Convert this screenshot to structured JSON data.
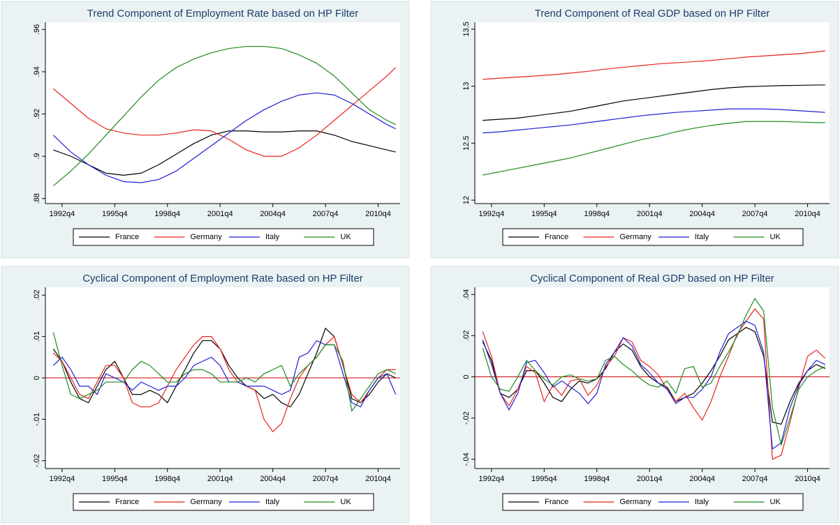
{
  "chart_data": [
    {
      "type": "line",
      "title": "Trend Component of Employment Rate based on HP Filter",
      "x": [
        1992.25,
        1993.25,
        1994.25,
        1995.25,
        1996.25,
        1997.25,
        1998.25,
        1999.25,
        2000.25,
        2001.25,
        2002.25,
        2003.25,
        2004.25,
        2005.25,
        2006.25,
        2007.25,
        2008.25,
        2009.25,
        2010.25,
        2011.25,
        2011.75
      ],
      "xlim": [
        1991.8,
        2012.0
      ],
      "xticks": [
        {
          "value": 1992.75,
          "label": "1992q4"
        },
        {
          "value": 1995.75,
          "label": "1995q4"
        },
        {
          "value": 1998.75,
          "label": "1998q4"
        },
        {
          "value": 2001.75,
          "label": "2001q4"
        },
        {
          "value": 2004.75,
          "label": "2004q4"
        },
        {
          "value": 2007.75,
          "label": "2007q4"
        },
        {
          "value": 2010.75,
          "label": "2010q4"
        }
      ],
      "ylim": [
        0.8776,
        0.9634
      ],
      "yticks": [
        {
          "value": 0.88,
          "label": ".88"
        },
        {
          "value": 0.9,
          "label": ".9"
        },
        {
          "value": 0.92,
          "label": ".92"
        },
        {
          "value": 0.94,
          "label": ".94"
        },
        {
          "value": 0.96,
          "label": ".96"
        }
      ],
      "series": [
        {
          "name": "France",
          "color": "#000000",
          "values": [
            0.903,
            0.9,
            0.896,
            0.892,
            0.891,
            0.892,
            0.896,
            0.901,
            0.906,
            0.91,
            0.912,
            0.912,
            0.9115,
            0.9115,
            0.912,
            0.912,
            0.91,
            0.907,
            0.905,
            0.903,
            0.902
          ]
        },
        {
          "name": "Germany",
          "color": "#e8231e",
          "values": [
            0.932,
            0.925,
            0.918,
            0.913,
            0.911,
            0.91,
            0.91,
            0.911,
            0.9125,
            0.912,
            0.908,
            0.903,
            0.9,
            0.9,
            0.904,
            0.91,
            0.917,
            0.924,
            0.931,
            0.938,
            0.942
          ]
        },
        {
          "name": "Italy",
          "color": "#1f1fd6",
          "values": [
            0.91,
            0.902,
            0.896,
            0.891,
            0.888,
            0.8875,
            0.889,
            0.893,
            0.899,
            0.905,
            0.911,
            0.917,
            0.922,
            0.926,
            0.929,
            0.93,
            0.929,
            0.925,
            0.92,
            0.915,
            0.913
          ]
        },
        {
          "name": "UK",
          "color": "#1e8a1e",
          "values": [
            0.886,
            0.893,
            0.901,
            0.91,
            0.919,
            0.928,
            0.936,
            0.942,
            0.946,
            0.949,
            0.951,
            0.952,
            0.952,
            0.951,
            0.948,
            0.944,
            0.938,
            0.93,
            0.922,
            0.917,
            0.915
          ]
        }
      ]
    },
    {
      "type": "line",
      "title": "Trend Component of Real GDP based on HP Filter",
      "x": [
        1992.25,
        1993.25,
        1994.25,
        1995.25,
        1996.25,
        1997.25,
        1998.25,
        1999.25,
        2000.25,
        2001.25,
        2002.25,
        2003.25,
        2004.25,
        2005.25,
        2006.25,
        2007.25,
        2008.25,
        2009.25,
        2010.25,
        2011.25,
        2011.75
      ],
      "xlim": [
        1991.8,
        2012.0
      ],
      "xticks": [
        {
          "value": 1992.75,
          "label": "1992q4"
        },
        {
          "value": 1995.75,
          "label": "1995q4"
        },
        {
          "value": 1998.75,
          "label": "1998q4"
        },
        {
          "value": 2001.75,
          "label": "2001q4"
        },
        {
          "value": 2004.75,
          "label": "2004q4"
        },
        {
          "value": 2007.75,
          "label": "2007q4"
        },
        {
          "value": 2010.75,
          "label": "2010q4"
        }
      ],
      "ylim": [
        11.97,
        13.56
      ],
      "yticks": [
        12,
        12.5,
        13,
        13.5
      ],
      "series": [
        {
          "name": "France",
          "color": "#000000",
          "values": [
            12.7,
            12.71,
            12.72,
            12.74,
            12.76,
            12.78,
            12.81,
            12.84,
            12.87,
            12.89,
            12.91,
            12.93,
            12.95,
            12.97,
            12.985,
            12.995,
            13.0,
            13.005,
            13.007,
            13.01,
            13.01
          ]
        },
        {
          "name": "Germany",
          "color": "#e8231e",
          "values": [
            13.06,
            13.07,
            13.08,
            13.09,
            13.1,
            13.115,
            13.13,
            13.15,
            13.165,
            13.18,
            13.195,
            13.205,
            13.215,
            13.225,
            13.24,
            13.255,
            13.265,
            13.275,
            13.285,
            13.3,
            13.31
          ]
        },
        {
          "name": "Italy",
          "color": "#1f1fd6",
          "values": [
            12.59,
            12.6,
            12.615,
            12.63,
            12.645,
            12.66,
            12.68,
            12.7,
            12.72,
            12.74,
            12.755,
            12.77,
            12.78,
            12.79,
            12.8,
            12.8,
            12.8,
            12.795,
            12.785,
            12.775,
            12.77
          ]
        },
        {
          "name": "UK",
          "color": "#1e8a1e",
          "values": [
            12.22,
            12.25,
            12.28,
            12.31,
            12.34,
            12.37,
            12.41,
            12.45,
            12.49,
            12.53,
            12.56,
            12.6,
            12.63,
            12.655,
            12.675,
            12.69,
            12.69,
            12.69,
            12.685,
            12.68,
            12.68
          ]
        }
      ]
    },
    {
      "type": "line",
      "title": "Cyclical Component of Employment Rate based on HP Filter",
      "x": [
        1992.25,
        1992.75,
        1993.25,
        1993.75,
        1994.25,
        1994.75,
        1995.25,
        1995.75,
        1996.25,
        1996.75,
        1997.25,
        1997.75,
        1998.25,
        1998.75,
        1999.25,
        1999.75,
        2000.25,
        2000.75,
        2001.25,
        2001.75,
        2002.25,
        2002.75,
        2003.25,
        2003.75,
        2004.25,
        2004.75,
        2005.25,
        2005.75,
        2006.25,
        2006.75,
        2007.25,
        2007.75,
        2008.25,
        2008.75,
        2009.25,
        2009.75,
        2010.25,
        2010.75,
        2011.25,
        2011.75
      ],
      "xlim": [
        1991.8,
        2012.0
      ],
      "xticks": [
        {
          "value": 1992.75,
          "label": "1992q4"
        },
        {
          "value": 1995.75,
          "label": "1995q4"
        },
        {
          "value": 1998.75,
          "label": "1998q4"
        },
        {
          "value": 2001.75,
          "label": "2001q4"
        },
        {
          "value": 2004.75,
          "label": "2004q4"
        },
        {
          "value": 2007.75,
          "label": "2007q4"
        },
        {
          "value": 2010.75,
          "label": "2010q4"
        }
      ],
      "ylim": [
        -0.0219,
        0.0219
      ],
      "yticks": [
        {
          "value": -0.02,
          "label": "-.02"
        },
        {
          "value": -0.01,
          "label": "-.01"
        },
        0,
        {
          "value": 0.01,
          "label": ".01"
        },
        {
          "value": 0.02,
          "label": ".02"
        }
      ],
      "reference_line": {
        "value": 0,
        "color": "#c00000"
      },
      "series": [
        {
          "name": "France",
          "color": "#000000",
          "values": [
            0.007,
            0.004,
            -0.001,
            -0.005,
            -0.006,
            -0.002,
            0.002,
            0.004,
            0.0,
            -0.004,
            -0.004,
            -0.003,
            -0.004,
            -0.006,
            -0.002,
            0.002,
            0.006,
            0.009,
            0.009,
            0.007,
            0.003,
            0.0,
            -0.002,
            -0.003,
            -0.005,
            -0.004,
            -0.006,
            -0.007,
            -0.004,
            0.001,
            0.006,
            0.012,
            0.01,
            0.003,
            -0.005,
            -0.006,
            -0.004,
            -0.001,
            0.001,
            0.0
          ]
        },
        {
          "name": "Germany",
          "color": "#e8231e",
          "values": [
            0.006,
            0.004,
            0.0,
            -0.004,
            -0.005,
            -0.001,
            0.003,
            0.003,
            0.0,
            -0.006,
            -0.007,
            -0.007,
            -0.006,
            -0.002,
            0.002,
            0.005,
            0.008,
            0.01,
            0.01,
            0.007,
            0.002,
            -0.001,
            -0.002,
            -0.003,
            -0.01,
            -0.013,
            -0.011,
            -0.005,
            0.0,
            0.003,
            0.005,
            0.008,
            0.01,
            0.003,
            -0.004,
            -0.006,
            -0.003,
            0.0,
            0.002,
            0.002
          ]
        },
        {
          "name": "Italy",
          "color": "#1f1fd6",
          "values": [
            0.003,
            0.005,
            0.002,
            -0.002,
            -0.002,
            -0.004,
            0.001,
            0.0,
            -0.001,
            -0.003,
            -0.001,
            -0.002,
            -0.003,
            -0.002,
            -0.002,
            0.0,
            0.003,
            0.004,
            0.005,
            0.003,
            -0.001,
            -0.001,
            -0.002,
            -0.002,
            -0.002,
            -0.003,
            -0.004,
            -0.003,
            0.005,
            0.006,
            0.009,
            0.008,
            0.008,
            0.001,
            -0.006,
            -0.007,
            -0.003,
            0.0,
            0.001,
            -0.004
          ]
        },
        {
          "name": "UK",
          "color": "#1e8a1e",
          "values": [
            0.011,
            0.003,
            -0.004,
            -0.005,
            -0.004,
            -0.003,
            -0.001,
            -0.001,
            -0.001,
            0.002,
            0.004,
            0.003,
            0.001,
            -0.001,
            -0.001,
            0.001,
            0.002,
            0.002,
            0.001,
            -0.001,
            -0.001,
            -0.001,
            0.0,
            -0.001,
            0.001,
            0.002,
            0.003,
            -0.002,
            0.001,
            0.003,
            0.005,
            0.008,
            0.008,
            0.004,
            -0.008,
            -0.005,
            -0.002,
            0.001,
            0.002,
            0.001
          ]
        }
      ]
    },
    {
      "type": "line",
      "title": "Cyclical Component of Real GDP based on HP Filter",
      "x": [
        1992.25,
        1992.75,
        1993.25,
        1993.75,
        1994.25,
        1994.75,
        1995.25,
        1995.75,
        1996.25,
        1996.75,
        1997.25,
        1997.75,
        1998.25,
        1998.75,
        1999.25,
        1999.75,
        2000.25,
        2000.75,
        2001.25,
        2001.75,
        2002.25,
        2002.75,
        2003.25,
        2003.75,
        2004.25,
        2004.75,
        2005.25,
        2005.75,
        2006.25,
        2006.75,
        2007.25,
        2007.75,
        2008.25,
        2008.75,
        2009.25,
        2009.75,
        2010.25,
        2010.75,
        2011.25,
        2011.75
      ],
      "xlim": [
        1991.8,
        2012.0
      ],
      "xticks": [
        {
          "value": 1992.75,
          "label": "1992q4"
        },
        {
          "value": 1995.75,
          "label": "1995q4"
        },
        {
          "value": 1998.75,
          "label": "1998q4"
        },
        {
          "value": 2001.75,
          "label": "2001q4"
        },
        {
          "value": 2004.75,
          "label": "2004q4"
        },
        {
          "value": 2007.75,
          "label": "2007q4"
        },
        {
          "value": 2010.75,
          "label": "2010q4"
        }
      ],
      "ylim": [
        -0.0445,
        0.0435
      ],
      "yticks": [
        {
          "value": -0.04,
          "label": "-.04"
        },
        {
          "value": -0.02,
          "label": "-.02"
        },
        0,
        {
          "value": 0.02,
          "label": ".02"
        },
        {
          "value": 0.04,
          "label": ".04"
        }
      ],
      "reference_line": {
        "value": 0,
        "color": "#c00000"
      },
      "series": [
        {
          "name": "France",
          "color": "#000000",
          "values": [
            0.017,
            0.008,
            -0.008,
            -0.01,
            -0.006,
            0.003,
            0.003,
            -0.003,
            -0.01,
            -0.012,
            -0.006,
            -0.002,
            -0.003,
            -0.001,
            0.004,
            0.012,
            0.016,
            0.013,
            0.005,
            0.0,
            -0.003,
            -0.005,
            -0.012,
            -0.01,
            -0.008,
            -0.003,
            0.003,
            0.01,
            0.018,
            0.021,
            0.024,
            0.022,
            0.01,
            -0.022,
            -0.023,
            -0.012,
            -0.003,
            0.003,
            0.006,
            0.004
          ]
        },
        {
          "name": "Germany",
          "color": "#e8231e",
          "values": [
            0.022,
            0.01,
            -0.008,
            -0.014,
            -0.006,
            0.005,
            0.002,
            -0.012,
            -0.004,
            -0.009,
            -0.002,
            -0.001,
            -0.009,
            -0.004,
            0.005,
            0.01,
            0.019,
            0.017,
            0.008,
            0.005,
            0.001,
            -0.006,
            -0.012,
            -0.008,
            -0.015,
            -0.021,
            -0.012,
            0.0,
            0.01,
            0.021,
            0.027,
            0.033,
            0.028,
            -0.04,
            -0.038,
            -0.022,
            -0.005,
            0.01,
            0.013,
            0.009
          ]
        },
        {
          "name": "Italy",
          "color": "#1f1fd6",
          "values": [
            0.018,
            0.006,
            -0.008,
            -0.016,
            -0.008,
            0.007,
            0.008,
            0.002,
            -0.005,
            -0.002,
            -0.005,
            -0.008,
            -0.013,
            -0.008,
            0.006,
            0.012,
            0.019,
            0.015,
            0.006,
            0.002,
            -0.003,
            -0.006,
            -0.013,
            -0.01,
            -0.01,
            -0.006,
            0.0,
            0.012,
            0.021,
            0.024,
            0.027,
            0.025,
            0.012,
            -0.035,
            -0.032,
            -0.015,
            -0.004,
            0.003,
            0.008,
            0.006
          ]
        },
        {
          "name": "UK",
          "color": "#1e8a1e",
          "values": [
            0.014,
            0.0,
            -0.006,
            -0.007,
            0.0,
            0.008,
            0.003,
            -0.001,
            -0.004,
            0.0,
            0.001,
            -0.001,
            -0.002,
            -0.001,
            0.008,
            0.01,
            0.006,
            0.003,
            -0.001,
            -0.004,
            -0.005,
            -0.002,
            -0.008,
            0.004,
            0.005,
            -0.005,
            -0.003,
            0.005,
            0.012,
            0.02,
            0.03,
            0.038,
            0.032,
            -0.015,
            -0.033,
            -0.02,
            -0.006,
            0.0,
            0.003,
            0.005
          ]
        }
      ]
    }
  ]
}
